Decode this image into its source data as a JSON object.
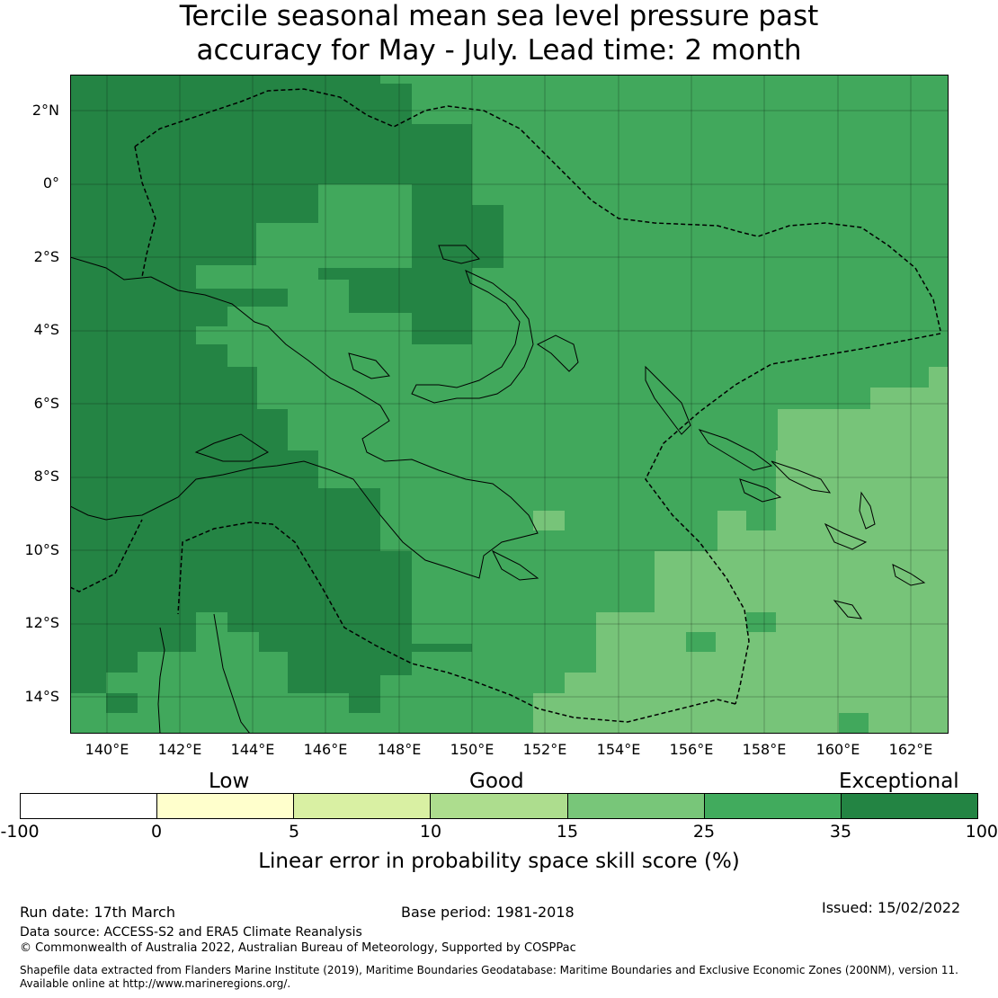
{
  "title_line1": "Tercile seasonal mean sea level pressure past",
  "title_line2": "accuracy for May - July. Lead time: 2 month",
  "lat_labels": [
    "2°N",
    "0°",
    "2°S",
    "4°S",
    "6°S",
    "8°S",
    "10°S",
    "12°S",
    "14°S"
  ],
  "lon_labels": [
    "140°E",
    "142°E",
    "144°E",
    "146°E",
    "148°E",
    "150°E",
    "152°E",
    "154°E",
    "156°E",
    "158°E",
    "160°E",
    "162°E"
  ],
  "legend": {
    "bands": [
      "Low",
      "Good",
      "Exceptional"
    ],
    "ticks": [
      "-100",
      "0",
      "5",
      "10",
      "15",
      "25",
      "35",
      "100"
    ],
    "colors": [
      "#ffffff",
      "#ffffcc",
      "#d9f0a3",
      "#addd8e",
      "#78c679",
      "#41ab5d",
      "#238443"
    ],
    "label": "Linear error in probability space skill score (%)"
  },
  "footer": {
    "run_date": "Run date: 17th March",
    "base_period": "Base period: 1981-2018",
    "issued": "Issued: 15/02/2022",
    "data_source": "Data source: ACCESS-S2 and ERA5 Climate Reanalysis",
    "copyright": "© Commonwealth of Australia 2022, Australian Bureau of Meteorology, Supported by COSPPac",
    "shapefile_line1": "Shapefile data extracted from Flanders Marine Institute (2019), Maritime Boundaries Geodatabase: Maritime Boundaries and Exclusive Economic Zones (200NM), version 11.",
    "shapefile_line2": "Available online at http://www.marineregions.org/."
  },
  "colors": {
    "exceptional": "#248444",
    "high": "#41a85c",
    "medium": "#77c479"
  }
}
